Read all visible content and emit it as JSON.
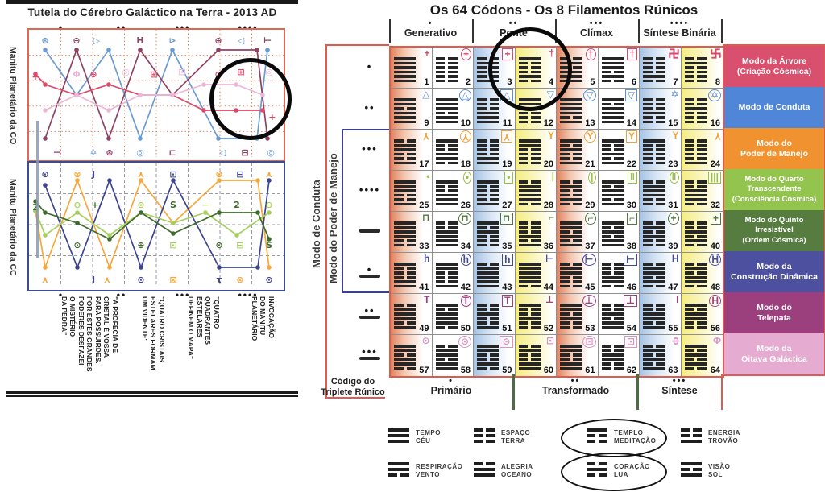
{
  "left_panel": {
    "title": "Tutela do Cérebro Galáctico na Terra - 2013 AD",
    "dot_markers": [
      "•",
      "••",
      "•••",
      "••••"
    ],
    "chart_co": {
      "side_label": "Manitu Planetário da CO",
      "series": [
        {
          "color": "#6b9bd2",
          "points": [
            [
              20,
              25
            ],
            [
              59,
              81
            ],
            [
              99,
              25
            ],
            [
              138,
              135
            ],
            [
              178,
              25
            ],
            [
              235,
              135
            ],
            [
              283,
              135
            ],
            [
              296,
              25
            ]
          ]
        },
        {
          "color": "#8e4263",
          "points": [
            [
              20,
              135
            ],
            [
              59,
              25
            ],
            [
              99,
              135
            ],
            [
              138,
              25
            ],
            [
              178,
              81
            ],
            [
              235,
              25
            ],
            [
              283,
              25
            ],
            [
              296,
              135
            ]
          ]
        },
        {
          "color": "#e04868",
          "points": [
            [
              8,
              55
            ],
            [
              20,
              68
            ],
            [
              59,
              81
            ],
            [
              99,
              68
            ],
            [
              138,
              81
            ],
            [
              178,
              81
            ],
            [
              217,
              100
            ],
            [
              257,
              100
            ],
            [
              290,
              100
            ]
          ]
        },
        {
          "color": "#edb8d7",
          "points": [
            [
              20,
              100
            ],
            [
              59,
              81
            ],
            [
              99,
              100
            ],
            [
              138,
              81
            ],
            [
              178,
              81
            ],
            [
              217,
              68
            ],
            [
              257,
              68
            ],
            [
              290,
              81
            ]
          ]
        }
      ],
      "symbols": [
        [
          "⊛",
          20,
          13,
          "#6b9bd2"
        ],
        [
          "⊖",
          59,
          13,
          "#8e4263"
        ],
        [
          "▷",
          84,
          13,
          "#6b9bd2"
        ],
        [
          "H",
          138,
          13,
          "#8e4263"
        ],
        [
          "⊳",
          178,
          13,
          "#6b9bd2"
        ],
        [
          "⊕",
          235,
          13,
          "#8e4263"
        ],
        [
          "◁",
          263,
          13,
          "#6b9bd2"
        ],
        [
          "⊢",
          296,
          13,
          "#8e4263"
        ],
        [
          "+",
          8,
          58,
          "#e04868"
        ],
        [
          "Φ",
          59,
          55,
          "#edb8d7"
        ],
        [
          "⊕",
          80,
          55,
          "#e04868"
        ],
        [
          "◎",
          120,
          52,
          "#edb8d7"
        ],
        [
          "⊞",
          155,
          55,
          "#e04868"
        ],
        [
          "⊡",
          190,
          52,
          "#edb8d7"
        ],
        [
          "⊙",
          235,
          55,
          "#e04868"
        ],
        [
          "⊞",
          263,
          52,
          "#e04868"
        ],
        [
          "◎",
          298,
          52,
          "#edb8d7"
        ],
        [
          "+",
          302,
          108,
          "#e04868"
        ],
        [
          "⊣",
          35,
          152,
          "#8e4263"
        ],
        [
          "✡",
          80,
          152,
          "#6b9bd2"
        ],
        [
          "⊛",
          100,
          152,
          "#8e4263"
        ],
        [
          "◎",
          138,
          152,
          "#6b9bd2"
        ],
        [
          "⊏",
          178,
          152,
          "#8e4263"
        ],
        [
          "◁",
          240,
          152,
          "#6b9bd2"
        ],
        [
          "⊟",
          268,
          152,
          "#8e4263"
        ],
        [
          "◎",
          300,
          152,
          "#6b9bd2"
        ]
      ]
    },
    "chart_cc": {
      "side_label": "Manitu Planetário da CC",
      "series": [
        {
          "color": "#f6a83c",
          "points": [
            [
              8,
              60
            ],
            [
              20,
              130
            ],
            [
              60,
              22
            ],
            [
              100,
              130
            ],
            [
              139,
              22
            ],
            [
              179,
              75
            ],
            [
              236,
              22
            ],
            [
              284,
              22
            ],
            [
              298,
              130
            ]
          ]
        },
        {
          "color": "#3d4490",
          "points": [
            [
              20,
              28
            ],
            [
              60,
              130
            ],
            [
              100,
              22
            ],
            [
              139,
              130
            ],
            [
              179,
              22
            ],
            [
              236,
              130
            ],
            [
              284,
              130
            ],
            [
              298,
              22
            ]
          ]
        },
        {
          "color": "#a5cf5c",
          "points": [
            [
              8,
              60
            ],
            [
              20,
              90
            ],
            [
              60,
              62
            ],
            [
              100,
              90
            ],
            [
              139,
              62
            ],
            [
              179,
              75
            ],
            [
              219,
              62
            ],
            [
              258,
              90
            ],
            [
              298,
              62
            ]
          ]
        },
        {
          "color": "#3f6b2e",
          "points": [
            [
              8,
              48
            ],
            [
              20,
              62
            ],
            [
              60,
              75
            ],
            [
              100,
              95
            ],
            [
              139,
              62
            ],
            [
              179,
              88
            ],
            [
              236,
              62
            ],
            [
              284,
              62
            ],
            [
              298,
              95
            ]
          ]
        }
      ],
      "symbols": [
        [
          "⊙",
          20,
          14,
          "#3d4490"
        ],
        [
          "⊗",
          60,
          14,
          "#f6a83c"
        ],
        [
          "J",
          80,
          14,
          "#3d4490"
        ],
        [
          "⋏",
          139,
          14,
          "#f6a83c"
        ],
        [
          "⊡",
          179,
          14,
          "#3d4490"
        ],
        [
          "⊗",
          236,
          14,
          "#f6a83c"
        ],
        [
          "⊟",
          262,
          14,
          "#3d4490"
        ],
        [
          "⋏",
          298,
          14,
          "#f6a83c"
        ],
        [
          "2",
          8,
          55,
          "#3f6b2e"
        ],
        [
          "⊖",
          60,
          52,
          "#a5cf5c"
        ],
        [
          "+",
          82,
          52,
          "#3f6b2e"
        ],
        [
          "⊙",
          139,
          52,
          "#a5cf5c"
        ],
        [
          "S",
          179,
          52,
          "#3f6b2e"
        ],
        [
          "−",
          219,
          52,
          "#a5cf5c"
        ],
        [
          "2",
          258,
          52,
          "#3f6b2e"
        ],
        [
          "⊖",
          298,
          52,
          "#a5cf5c"
        ],
        [
          "⊙",
          60,
          102,
          "#3f6b2e"
        ],
        [
          "⊕",
          139,
          102,
          "#3f6b2e"
        ],
        [
          "⊡",
          179,
          102,
          "#a5cf5c"
        ],
        [
          "⊙",
          236,
          102,
          "#3f6b2e"
        ],
        [
          "⊟",
          262,
          102,
          "#a5cf5c"
        ],
        [
          "S",
          298,
          102,
          "#3f6b2e"
        ],
        [
          "⋏",
          20,
          145,
          "#f6a83c"
        ],
        [
          "I",
          80,
          145,
          "#3d4490"
        ],
        [
          "⋏",
          97,
          145,
          "#f6a83c"
        ],
        [
          "⊙",
          139,
          145,
          "#3d4490"
        ],
        [
          "⊠",
          179,
          145,
          "#f6a83c"
        ],
        [
          "τ",
          236,
          145,
          "#3d4490"
        ],
        [
          "⊗",
          262,
          145,
          "#f6a83c"
        ],
        [
          "⊙",
          298,
          145,
          "#3d4490"
        ]
      ]
    },
    "quotes": [
      {
        "dots": "•",
        "lines": [
          "\"A PROFECIA DE",
          "CRISTAL É VOSSA",
          "PARA POSSUIRDES.",
          "POR ESTES GRANDES",
          "PODERES DESFAZEI",
          "O MISTÉRIO",
          "DA PEDRA\""
        ]
      },
      {
        "dots": "••",
        "lines": [
          "\"QUATRO CRISTAIS",
          "ESTELARES FORMAM",
          "UM VIDENTE\""
        ]
      },
      {
        "dots": "•••",
        "lines": [
          "\"QUATRO",
          "QUADRANTES",
          "ESTELARES",
          "DEFINEM O MAPA\""
        ]
      },
      {
        "dots": "••••",
        "lines": [
          "INVOCAÇÃO",
          "DO MANITU",
          "PLANETÁRIO"
        ]
      }
    ]
  },
  "right_panel": {
    "title": "Os 64 Códons - Os 8 Filamentos Rúnicos",
    "column_groups": [
      {
        "dots": "•",
        "label": "Generativo"
      },
      {
        "dots": "••",
        "label": "Ponte"
      },
      {
        "dots": "•••",
        "label": "Clímax"
      },
      {
        "dots": "••••",
        "label": "Síntese Binária"
      }
    ],
    "left_labels": [
      {
        "label": "Modo de Conduta",
        "color": "#e15b4d"
      },
      {
        "label": "Modo do Poder de Manejo",
        "color": "#3c3f8f"
      }
    ],
    "triplet_code_line1": "Código do",
    "triplet_code_line2": "Triplete Rúnico",
    "bottom_groups": [
      {
        "dots": "•",
        "label": "Primário"
      },
      {
        "dots": "••",
        "label": "Transformado"
      },
      {
        "dots": "•••",
        "label": "Síntese"
      }
    ],
    "row_markers": [
      {
        "dots": 1,
        "bar": false
      },
      {
        "dots": 2,
        "bar": false
      },
      {
        "dots": 3,
        "bar": false
      },
      {
        "dots": 4,
        "bar": false
      },
      {
        "dots": 0,
        "bar": true
      },
      {
        "dots": 1,
        "bar": true
      },
      {
        "dots": 2,
        "bar": true
      },
      {
        "dots": 3,
        "bar": true
      }
    ],
    "rune_colors": [
      "#d9476b",
      "#5b8fd6",
      "#f0a03a",
      "#97c23f",
      "#50773b",
      "#42499a",
      "#a23d7e",
      "#d993c0"
    ],
    "row_modes": [
      {
        "lines": [
          "Modo da Árvore",
          "(Criação Cósmica)"
        ],
        "color": "#d94f6e"
      },
      {
        "lines": [
          "Modo de Conduta"
        ],
        "color": "#4f86d8"
      },
      {
        "lines": [
          "Modo do",
          "Poder de Manejo"
        ],
        "color": "#f0922f"
      },
      {
        "lines": [
          "Modo do Quarto",
          "Transcendente",
          "(Consciência Cósmica)"
        ],
        "color": "#92c44e"
      },
      {
        "lines": [
          "Modo do Quinto",
          "Irresistível",
          "(Ordem Cósmica)"
        ],
        "color": "#567c40"
      },
      {
        "lines": [
          "Modo da",
          "Construção Dinâmica"
        ],
        "color": "#4c509e"
      },
      {
        "lines": [
          "Modo do",
          "Telepata"
        ],
        "color": "#9c3f7d"
      },
      {
        "lines": [
          "Modo da",
          "Oitava Galáctica"
        ],
        "color": "#e5abd0"
      }
    ],
    "codons": [
      [
        1,
        "111111",
        "+",
        "",
        0
      ],
      [
        2,
        "000000",
        "+",
        "c",
        0
      ],
      [
        3,
        "010001",
        "+",
        "s",
        0
      ],
      [
        4,
        "100010",
        "†",
        "",
        0
      ],
      [
        5,
        "010111",
        "†",
        "c",
        0
      ],
      [
        6,
        "111010",
        "†",
        "s",
        0
      ],
      [
        7,
        "000010",
        "swl",
        "",
        0
      ],
      [
        8,
        "010000",
        "swr",
        "",
        0
      ],
      [
        9,
        "110111",
        "△",
        "",
        0
      ],
      [
        10,
        "111011",
        "△",
        "c",
        0
      ],
      [
        11,
        "000111",
        "△",
        "s",
        0
      ],
      [
        12,
        "111000",
        "▽",
        "",
        0
      ],
      [
        13,
        "111101",
        "▽",
        "c",
        0
      ],
      [
        14,
        "101111",
        "▽",
        "s",
        0
      ],
      [
        15,
        "000100",
        "✡",
        "",
        0
      ],
      [
        16,
        "001000",
        "✡",
        "c",
        0
      ],
      [
        17,
        "011001",
        "Y",
        "",
        180
      ],
      [
        18,
        "100110",
        "Y",
        "c",
        180
      ],
      [
        19,
        "000011",
        "Y",
        "s",
        180
      ],
      [
        20,
        "110000",
        "Y",
        "",
        0
      ],
      [
        21,
        "101001",
        "Y",
        "c",
        0
      ],
      [
        22,
        "100101",
        "Y",
        "s",
        0
      ],
      [
        23,
        "100000",
        "Y",
        "",
        0
      ],
      [
        24,
        "000001",
        "Y",
        "",
        180
      ],
      [
        25,
        "111001",
        "•",
        "",
        0
      ],
      [
        26,
        "100111",
        "•",
        "c",
        0
      ],
      [
        27,
        "100001",
        "•",
        "s",
        0
      ],
      [
        28,
        "011110",
        "|",
        "",
        0
      ],
      [
        29,
        "010010",
        "|",
        "c",
        0
      ],
      [
        30,
        "101101",
        "‖",
        "s",
        0
      ],
      [
        31,
        "011100",
        "‖",
        "c",
        0
      ],
      [
        32,
        "001110",
        "|||",
        "s",
        0
      ],
      [
        33,
        "111100",
        "⊓",
        "",
        0
      ],
      [
        34,
        "001111",
        "⊓",
        "c",
        0
      ],
      [
        35,
        "101000",
        "⊓",
        "s",
        0
      ],
      [
        36,
        "000101",
        "⌐",
        "",
        0
      ],
      [
        37,
        "110101",
        "⌐",
        "c",
        0
      ],
      [
        38,
        "101011",
        "⌐",
        "s",
        0
      ],
      [
        39,
        "010100",
        "+",
        "c",
        0
      ],
      [
        40,
        "001010",
        "+",
        "s",
        0
      ],
      [
        41,
        "100011",
        "h",
        "",
        0
      ],
      [
        42,
        "110001",
        "h",
        "c",
        0
      ],
      [
        43,
        "011111",
        "h",
        "s",
        0
      ],
      [
        44,
        "111110",
        "⊢",
        "",
        0
      ],
      [
        45,
        "011000",
        "⊢",
        "c",
        0
      ],
      [
        46,
        "000110",
        "⊢",
        "s",
        0
      ],
      [
        47,
        "011010",
        "H",
        "",
        0
      ],
      [
        48,
        "010110",
        "H",
        "c",
        0
      ],
      [
        49,
        "011101",
        "T",
        "",
        0
      ],
      [
        50,
        "101110",
        "T",
        "c",
        0
      ],
      [
        51,
        "001001",
        "T",
        "s",
        0
      ],
      [
        52,
        "100100",
        "⊥",
        "",
        0
      ],
      [
        53,
        "110100",
        "⊥",
        "c",
        0
      ],
      [
        54,
        "001011",
        "⊥",
        "s",
        0
      ],
      [
        55,
        "001101",
        "I",
        "",
        0
      ],
      [
        56,
        "101100",
        "H",
        "c",
        0
      ],
      [
        57,
        "110110",
        "⊙",
        "",
        0
      ],
      [
        58,
        "011011",
        "⊙",
        "c",
        0
      ],
      [
        59,
        "110010",
        "⊙",
        "s",
        0
      ],
      [
        60,
        "010011",
        "⊡",
        "",
        0
      ],
      [
        61,
        "110011",
        "⊡",
        "c",
        0
      ],
      [
        62,
        "001100",
        "⊡",
        "s",
        0
      ],
      [
        63,
        "010101",
        "Φ",
        "",
        90
      ],
      [
        64,
        "101010",
        "Φ",
        "",
        0
      ]
    ]
  },
  "legend": {
    "items": [
      {
        "top": "TEMPO",
        "bottom": "CÉU",
        "t": "111",
        "circled": false
      },
      {
        "top": "ESPAÇO",
        "bottom": "TERRA",
        "t": "000",
        "circled": false
      },
      {
        "top": "TEMPLO",
        "bottom": "MEDITAÇÃO",
        "t": "100",
        "circled": true
      },
      {
        "top": "ENERGIA",
        "bottom": "TROVÃO",
        "t": "001",
        "circled": false
      },
      {
        "top": "RESPIRAÇÃO",
        "bottom": "VENTO",
        "t": "110",
        "circled": false
      },
      {
        "top": "ALEGRIA",
        "bottom": "OCEANO",
        "t": "011",
        "circled": false
      },
      {
        "top": "CORAÇÃO",
        "bottom": "LUA",
        "t": "010",
        "circled": true
      },
      {
        "top": "VISÃO",
        "bottom": "SOL",
        "t": "101",
        "circled": false
      }
    ]
  }
}
